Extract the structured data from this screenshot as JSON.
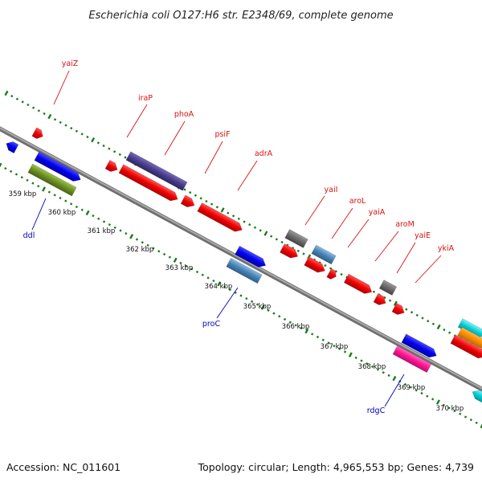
{
  "title": "Escherichia coli O127:H6 str. E2348/69, complete genome",
  "footer": {
    "accession": "Accession: NC_011601",
    "summary": "Topology: circular; Length: 4,965,553 bp; Genes: 4,739"
  },
  "colors": {
    "backbone": "#8a8a8a",
    "ticks": "#1a7a1a",
    "forward_label": "#dd1111",
    "reverse_label": "#0000bb"
  },
  "coordinate_labels": [
    "359 kbp",
    "360 kbp",
    "361 kbp",
    "362 kbp",
    "363 kbp",
    "364 kbp",
    "365 kbp",
    "366 kbp",
    "367 kbp",
    "368 kbp",
    "369 kbp",
    "370 kbp"
  ],
  "forward_gene_labels": [
    "yaiZ",
    "iraP",
    "phoA",
    "psiF",
    "adrA",
    "yaiI",
    "aroL",
    "yaiA",
    "aroM",
    "yaiE",
    "ykiA"
  ],
  "reverse_gene_labels": [
    "ddl",
    "proC",
    "rdgC"
  ]
}
